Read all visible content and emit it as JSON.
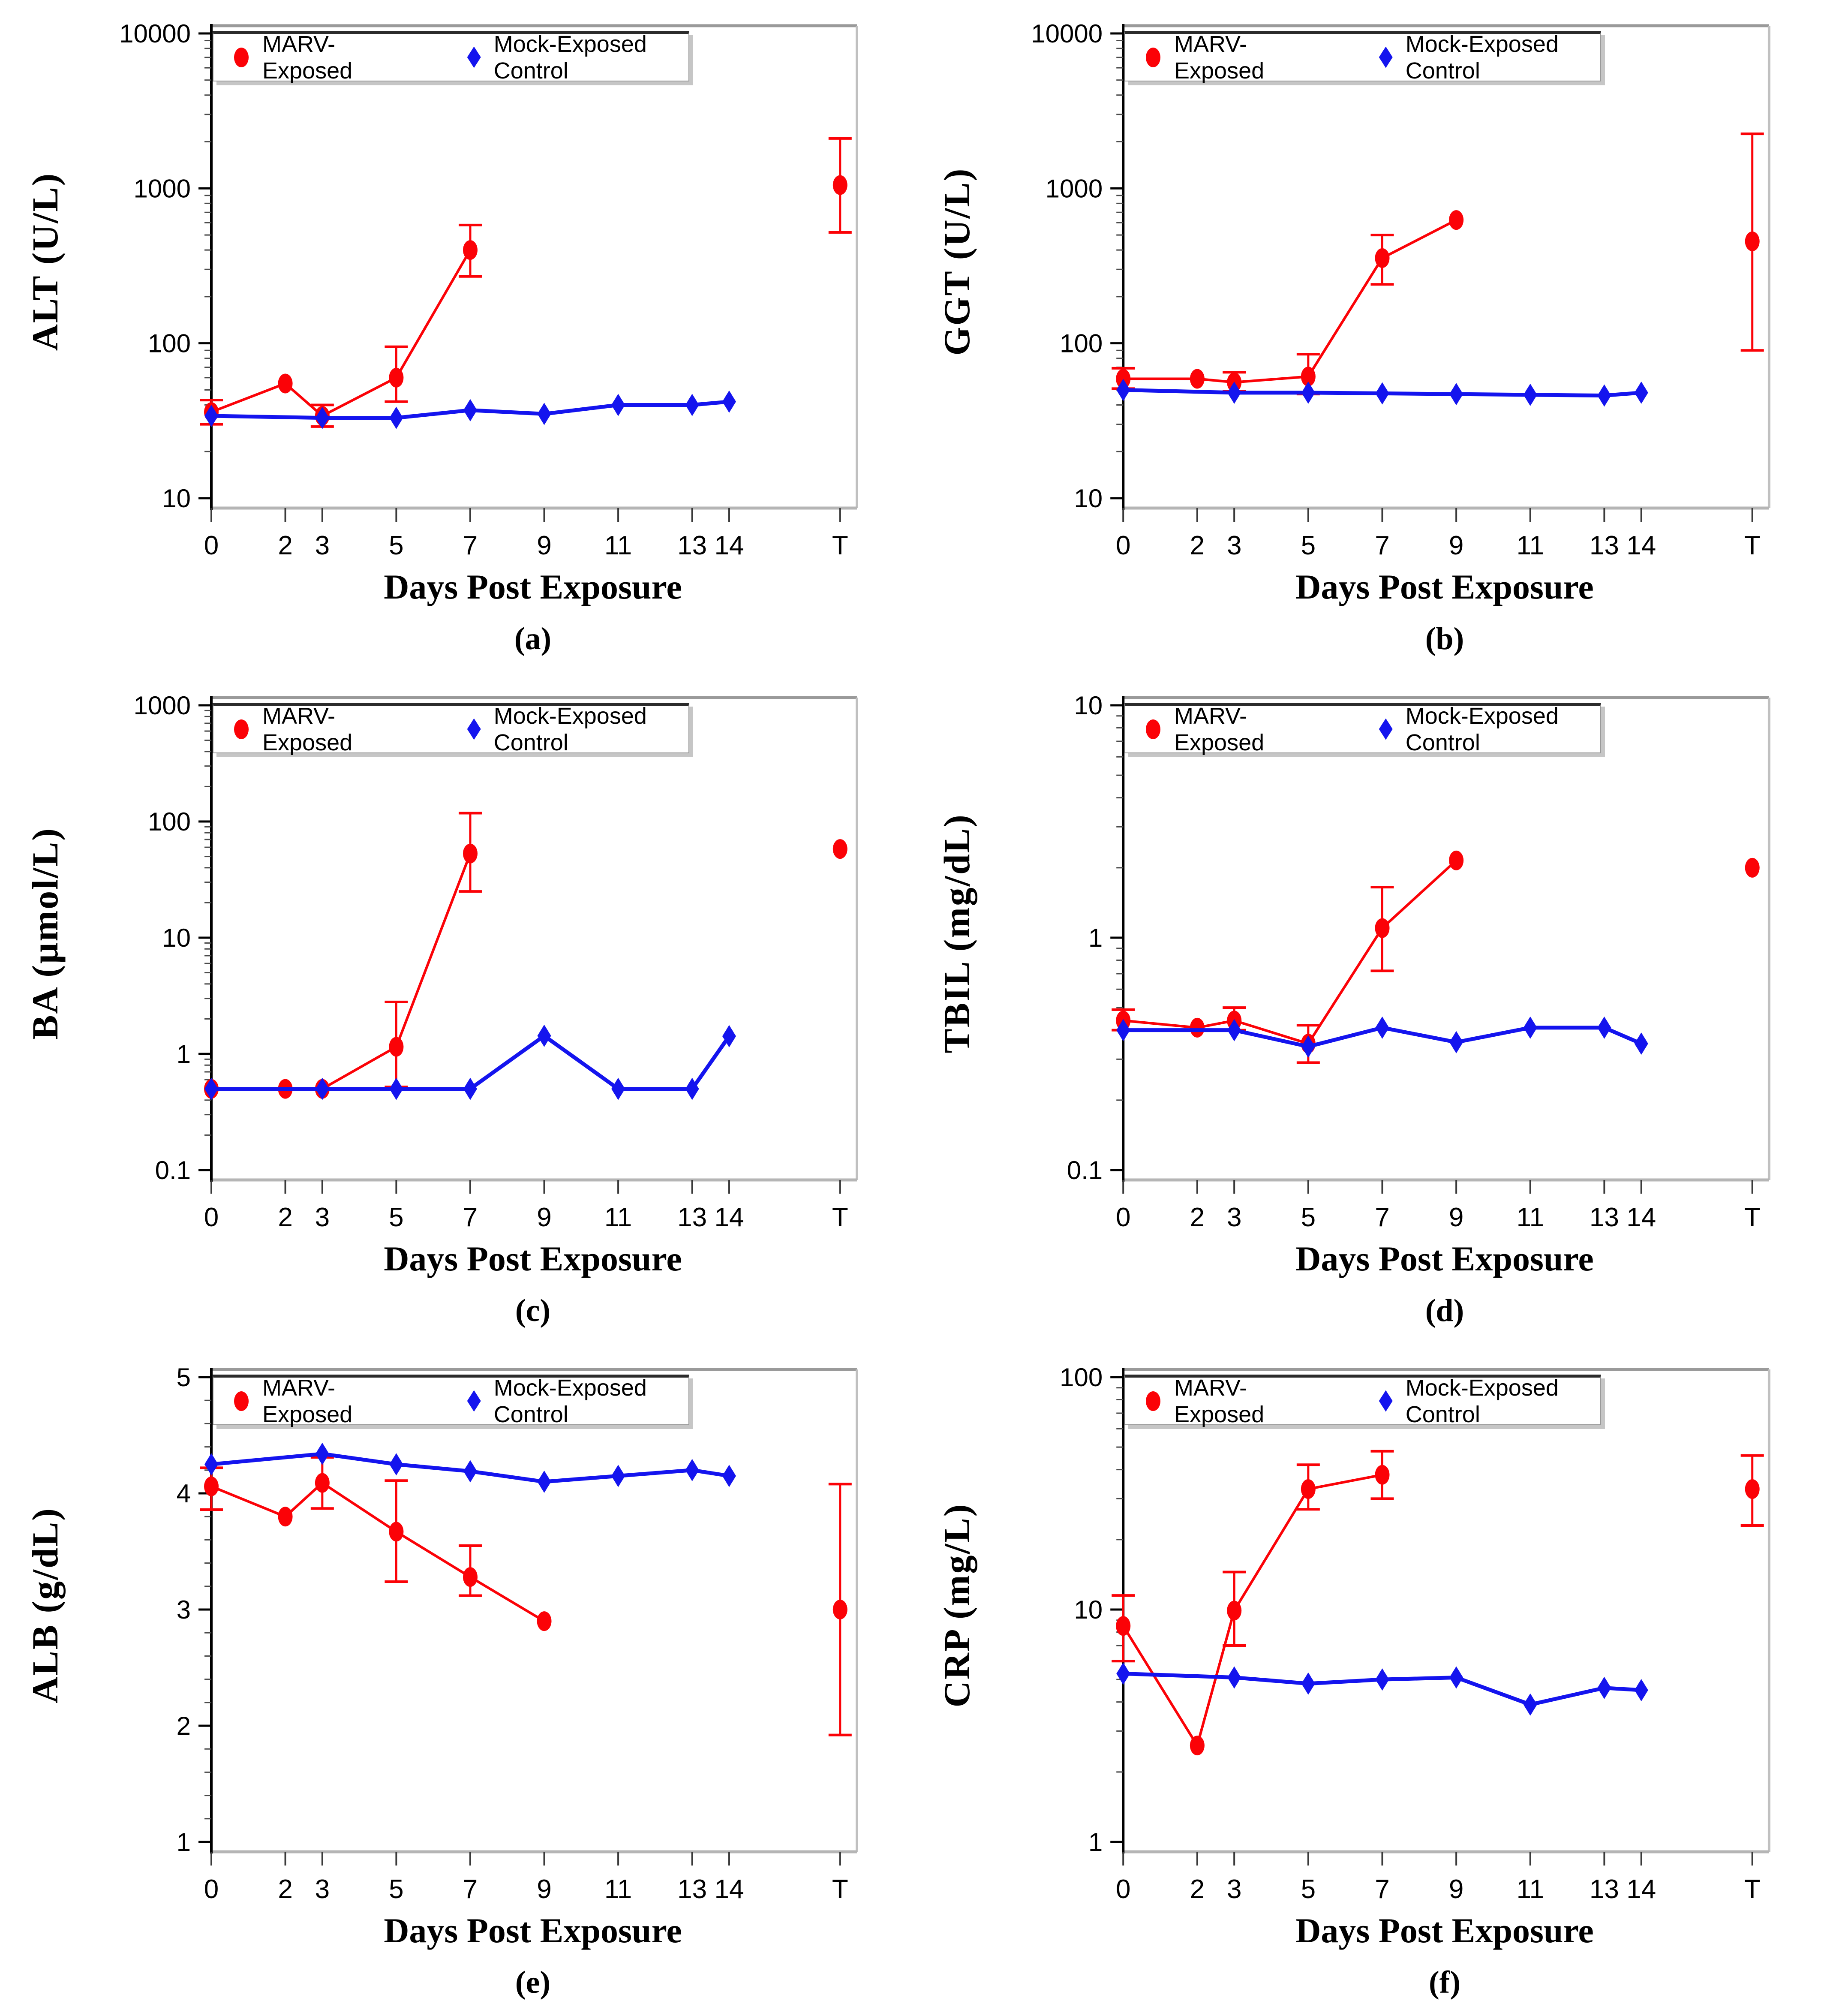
{
  "figure": {
    "xlabel": "Days Post Exposure",
    "x_values": [
      0,
      2,
      3,
      5,
      7,
      9,
      11,
      13,
      14,
      "T"
    ],
    "x_tick_labels": [
      "0",
      "2",
      "3",
      "5",
      "7",
      "9",
      "11",
      "13",
      "14",
      "T"
    ],
    "colors": {
      "marv_red": "#FB0207",
      "mock_blue": "#1414EE",
      "frame_gray": "#9a9a9a",
      "axis_black": "#000000"
    },
    "legend": {
      "items": [
        {
          "label": "MARV-Exposed",
          "marker": "ellipse",
          "color": "#FB0207"
        },
        {
          "label": "Mock-Exposed Control",
          "marker": "diamond",
          "color": "#1414EE"
        }
      ]
    }
  },
  "chart_data": [
    {
      "type": "line",
      "letter": "(a)",
      "ylabel": "ALT (U/L)",
      "yscale": "log",
      "ylim": [
        10,
        10000
      ],
      "ytick_labels": [
        "10",
        "100",
        "1000",
        "10000"
      ],
      "series": [
        {
          "name": "MARV-Exposed",
          "color": "#FB0207",
          "marker": "ellipse",
          "points": [
            {
              "x": 0,
              "y": 36,
              "lo": 30,
              "hi": 43
            },
            {
              "x": 2,
              "y": 55
            },
            {
              "x": 3,
              "y": 34,
              "lo": 29,
              "hi": 40
            },
            {
              "x": 5,
              "y": 60,
              "lo": 42,
              "hi": 95
            },
            {
              "x": 7,
              "y": 400,
              "lo": 270,
              "hi": 580
            }
          ],
          "terminal": {
            "x": "T",
            "y": 1050,
            "lo": 520,
            "hi": 2100
          }
        },
        {
          "name": "Mock-Exposed Control",
          "color": "#1414EE",
          "marker": "diamond",
          "points": [
            {
              "x": 0,
              "y": 34
            },
            {
              "x": 3,
              "y": 33
            },
            {
              "x": 5,
              "y": 33
            },
            {
              "x": 7,
              "y": 37
            },
            {
              "x": 9,
              "y": 35
            },
            {
              "x": 11,
              "y": 40
            },
            {
              "x": 13,
              "y": 40
            },
            {
              "x": 14,
              "y": 42
            }
          ]
        }
      ]
    },
    {
      "type": "line",
      "letter": "(b)",
      "ylabel": "GGT (U/L)",
      "yscale": "log",
      "ylim": [
        10,
        10000
      ],
      "ytick_labels": [
        "10",
        "100",
        "1000",
        "10000"
      ],
      "series": [
        {
          "name": "MARV-Exposed",
          "color": "#FB0207",
          "marker": "ellipse",
          "points": [
            {
              "x": 0,
              "y": 59,
              "lo": 51,
              "hi": 69
            },
            {
              "x": 2,
              "y": 59
            },
            {
              "x": 3,
              "y": 56,
              "lo": 49,
              "hi": 65
            },
            {
              "x": 5,
              "y": 61,
              "lo": 47,
              "hi": 85
            },
            {
              "x": 7,
              "y": 355,
              "lo": 240,
              "hi": 500
            },
            {
              "x": 9,
              "y": 625
            }
          ],
          "terminal": {
            "x": "T",
            "y": 455,
            "lo": 90,
            "hi": 2250
          }
        },
        {
          "name": "Mock-Exposed Control",
          "color": "#1414EE",
          "marker": "diamond",
          "points": [
            {
              "x": 0,
              "y": 50
            },
            {
              "x": 3,
              "y": 48
            },
            {
              "x": 5,
              "y": 48
            },
            {
              "x": 7,
              "y": 47.5
            },
            {
              "x": 9,
              "y": 47
            },
            {
              "x": 11,
              "y": 46.5
            },
            {
              "x": 13,
              "y": 46
            },
            {
              "x": 14,
              "y": 48
            }
          ]
        }
      ]
    },
    {
      "type": "line",
      "letter": "(c)",
      "ylabel": "BA (µmol/L)",
      "yscale": "log",
      "ylim": [
        0.1,
        1000
      ],
      "ytick_labels": [
        "0.1",
        "1",
        "10",
        "100",
        "1000"
      ],
      "series": [
        {
          "name": "MARV-Exposed",
          "color": "#FB0207",
          "marker": "ellipse",
          "points": [
            {
              "x": 0,
              "y": 0.5
            },
            {
              "x": 2,
              "y": 0.5
            },
            {
              "x": 3,
              "y": 0.5
            },
            {
              "x": 5,
              "y": 1.15,
              "lo": 0.52,
              "hi": 2.8
            },
            {
              "x": 7,
              "y": 53,
              "lo": 25,
              "hi": 118
            }
          ],
          "terminal": {
            "x": "T",
            "y": 58
          }
        },
        {
          "name": "Mock-Exposed Control",
          "color": "#1414EE",
          "marker": "diamond",
          "points": [
            {
              "x": 0,
              "y": 0.5
            },
            {
              "x": 3,
              "y": 0.5
            },
            {
              "x": 5,
              "y": 0.5
            },
            {
              "x": 7,
              "y": 0.5
            },
            {
              "x": 9,
              "y": 1.43
            },
            {
              "x": 11,
              "y": 0.5
            },
            {
              "x": 13,
              "y": 0.5
            },
            {
              "x": 14,
              "y": 1.42
            }
          ]
        }
      ]
    },
    {
      "type": "line",
      "letter": "(d)",
      "ylabel": "TBIL (mg/dL)",
      "yscale": "log",
      "ylim": [
        0.1,
        10
      ],
      "ytick_labels": [
        "0.1",
        "1",
        "10"
      ],
      "series": [
        {
          "name": "MARV-Exposed",
          "color": "#FB0207",
          "marker": "ellipse",
          "points": [
            {
              "x": 0,
              "y": 0.44,
              "lo": 0.4,
              "hi": 0.49
            },
            {
              "x": 2,
              "y": 0.41
            },
            {
              "x": 3,
              "y": 0.44,
              "lo": 0.4,
              "hi": 0.5
            },
            {
              "x": 5,
              "y": 0.35,
              "lo": 0.29,
              "hi": 0.42
            },
            {
              "x": 7,
              "y": 1.1,
              "lo": 0.72,
              "hi": 1.65
            },
            {
              "x": 9,
              "y": 2.15
            }
          ],
          "terminal": {
            "x": "T",
            "y": 2.0
          }
        },
        {
          "name": "Mock-Exposed Control",
          "color": "#1414EE",
          "marker": "diamond",
          "points": [
            {
              "x": 0,
              "y": 0.4
            },
            {
              "x": 3,
              "y": 0.4
            },
            {
              "x": 5,
              "y": 0.34
            },
            {
              "x": 7,
              "y": 0.41
            },
            {
              "x": 9,
              "y": 0.355
            },
            {
              "x": 11,
              "y": 0.41
            },
            {
              "x": 13,
              "y": 0.41
            },
            {
              "x": 14,
              "y": 0.35
            }
          ]
        }
      ]
    },
    {
      "type": "line",
      "letter": "(e)",
      "ylabel": "ALB (g/dL)",
      "yscale": "linear",
      "ylim": [
        1,
        5
      ],
      "yminor_step": 0.2,
      "ytick_labels": [
        "1",
        "2",
        "3",
        "4",
        "5"
      ],
      "series": [
        {
          "name": "MARV-Exposed",
          "color": "#FB0207",
          "marker": "ellipse",
          "points": [
            {
              "x": 0,
              "y": 4.06,
              "lo": 3.86,
              "hi": 4.22
            },
            {
              "x": 2,
              "y": 3.8
            },
            {
              "x": 3,
              "y": 4.09,
              "lo": 3.87,
              "hi": 4.31
            },
            {
              "x": 5,
              "y": 3.67,
              "lo": 3.24,
              "hi": 4.11
            },
            {
              "x": 7,
              "y": 3.28,
              "lo": 3.12,
              "hi": 3.55
            },
            {
              "x": 9,
              "y": 2.9
            }
          ],
          "terminal": {
            "x": "T",
            "y": 3.0,
            "lo": 1.92,
            "hi": 4.08
          }
        },
        {
          "name": "Mock-Exposed Control",
          "color": "#1414EE",
          "marker": "diamond",
          "points": [
            {
              "x": 0,
              "y": 4.25
            },
            {
              "x": 3,
              "y": 4.34
            },
            {
              "x": 5,
              "y": 4.25
            },
            {
              "x": 7,
              "y": 4.19
            },
            {
              "x": 9,
              "y": 4.1
            },
            {
              "x": 11,
              "y": 4.15
            },
            {
              "x": 13,
              "y": 4.2
            },
            {
              "x": 14,
              "y": 4.15
            }
          ]
        }
      ]
    },
    {
      "type": "line",
      "letter": "(f)",
      "ylabel": "CRP (mg/L)",
      "yscale": "log",
      "ylim": [
        1,
        100
      ],
      "ytick_labels": [
        "1",
        "10",
        "100"
      ],
      "series": [
        {
          "name": "MARV-Exposed",
          "color": "#FB0207",
          "marker": "ellipse",
          "points": [
            {
              "x": 0,
              "y": 8.5,
              "lo": 6.0,
              "hi": 11.5
            },
            {
              "x": 2,
              "y": 2.6
            },
            {
              "x": 3,
              "y": 9.9,
              "lo": 7.0,
              "hi": 14.5
            },
            {
              "x": 5,
              "y": 33,
              "lo": 27,
              "hi": 42
            },
            {
              "x": 7,
              "y": 38,
              "lo": 30,
              "hi": 48
            }
          ],
          "terminal": {
            "x": "T",
            "y": 33,
            "lo": 23,
            "hi": 46
          }
        },
        {
          "name": "Mock-Exposed Control",
          "color": "#1414EE",
          "marker": "diamond",
          "points": [
            {
              "x": 0,
              "y": 5.3
            },
            {
              "x": 3,
              "y": 5.1
            },
            {
              "x": 5,
              "y": 4.8
            },
            {
              "x": 7,
              "y": 5.0
            },
            {
              "x": 9,
              "y": 5.1
            },
            {
              "x": 11,
              "y": 3.9
            },
            {
              "x": 13,
              "y": 4.6
            },
            {
              "x": 14,
              "y": 4.5
            }
          ]
        }
      ]
    }
  ]
}
